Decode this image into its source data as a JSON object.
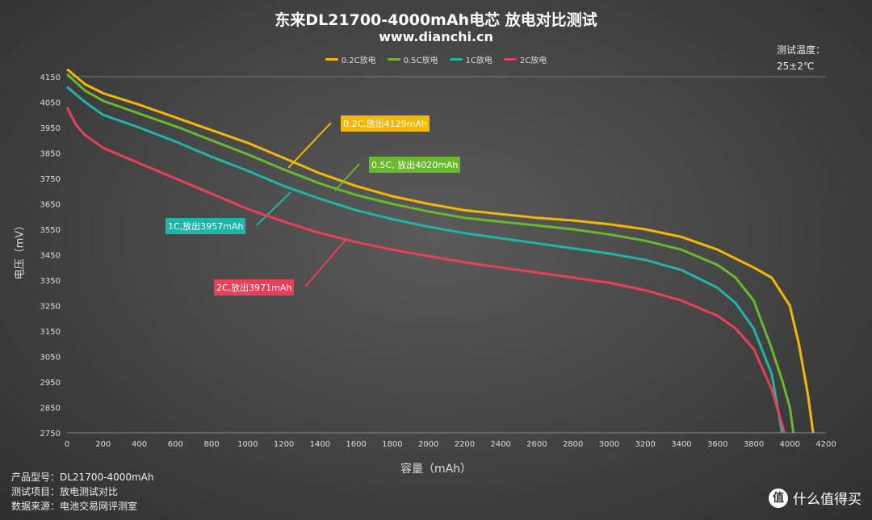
{
  "title": "东来DL21700-4000mAh电芯 放电对比测试",
  "subtitle": "www.dianchi.cn",
  "temperature": {
    "label": "测试温度：",
    "value": "25±2℃"
  },
  "info": [
    "产品型号：DL21700-4000mAh",
    "测试项目：放电测试对比",
    "数据来源：电池交易网评测室"
  ],
  "watermark": "什么值得买",
  "chart_data": {
    "type": "line",
    "xlabel": "容量（mAh）",
    "ylabel": "电压（mV）",
    "xlim": [
      0,
      4200
    ],
    "ylim": [
      2750,
      4150
    ],
    "xticks": [
      0,
      200,
      400,
      600,
      800,
      1000,
      1200,
      1400,
      1600,
      1800,
      2000,
      2200,
      2400,
      2600,
      2800,
      3000,
      3200,
      3400,
      3600,
      3800,
      4000,
      4200
    ],
    "yticks": [
      4150,
      4050,
      3950,
      3850,
      3750,
      3650,
      3550,
      3450,
      3350,
      3250,
      3150,
      3050,
      2950,
      2850,
      2750
    ],
    "grid": false,
    "legend_position": "top",
    "series": [
      {
        "name": "0.2C放电",
        "color": "#f5b800",
        "annotation": "0.2C,放出4129mAh",
        "x": [
          0,
          100,
          200,
          400,
          600,
          800,
          1000,
          1200,
          1400,
          1600,
          1800,
          2000,
          2200,
          2400,
          2600,
          2800,
          3000,
          3200,
          3400,
          3600,
          3800,
          3900,
          4000,
          4050,
          4100,
          4129
        ],
        "y": [
          4180,
          4120,
          4085,
          4040,
          3990,
          3940,
          3890,
          3830,
          3770,
          3720,
          3680,
          3650,
          3625,
          3610,
          3595,
          3585,
          3570,
          3550,
          3520,
          3470,
          3400,
          3360,
          3250,
          3100,
          2900,
          2750
        ]
      },
      {
        "name": "0.5C放电",
        "color": "#6ab82e",
        "annotation": "0.5C, 放出4020mAh",
        "x": [
          0,
          100,
          200,
          400,
          600,
          800,
          1000,
          1200,
          1400,
          1600,
          1800,
          2000,
          2200,
          2400,
          2600,
          2800,
          3000,
          3200,
          3400,
          3600,
          3700,
          3800,
          3900,
          3960,
          4000,
          4020
        ],
        "y": [
          4160,
          4095,
          4055,
          4005,
          3955,
          3900,
          3845,
          3785,
          3730,
          3685,
          3650,
          3620,
          3595,
          3580,
          3565,
          3550,
          3530,
          3505,
          3470,
          3410,
          3360,
          3270,
          3080,
          2950,
          2850,
          2750
        ]
      },
      {
        "name": "1C放电",
        "color": "#1fb5a8",
        "annotation": "1C,放出3957mAh",
        "x": [
          0,
          100,
          200,
          400,
          600,
          800,
          1000,
          1200,
          1400,
          1600,
          1800,
          2000,
          2200,
          2400,
          2600,
          2800,
          3000,
          3200,
          3400,
          3600,
          3700,
          3800,
          3900,
          3957
        ],
        "y": [
          4110,
          4050,
          4000,
          3950,
          3895,
          3835,
          3780,
          3720,
          3670,
          3625,
          3590,
          3560,
          3535,
          3515,
          3495,
          3475,
          3455,
          3430,
          3390,
          3320,
          3260,
          3160,
          2980,
          2750
        ]
      },
      {
        "name": "2C放电",
        "color": "#e8405a",
        "annotation": "2C,放出3971mAh",
        "x": [
          0,
          50,
          100,
          200,
          400,
          600,
          800,
          1000,
          1200,
          1400,
          1600,
          1800,
          2000,
          2200,
          2400,
          2600,
          2800,
          3000,
          3200,
          3400,
          3600,
          3700,
          3800,
          3900,
          3971
        ],
        "y": [
          4030,
          3960,
          3920,
          3870,
          3810,
          3750,
          3690,
          3630,
          3580,
          3535,
          3500,
          3470,
          3445,
          3420,
          3400,
          3380,
          3360,
          3340,
          3310,
          3270,
          3210,
          3160,
          3080,
          2920,
          2750
        ]
      }
    ]
  }
}
